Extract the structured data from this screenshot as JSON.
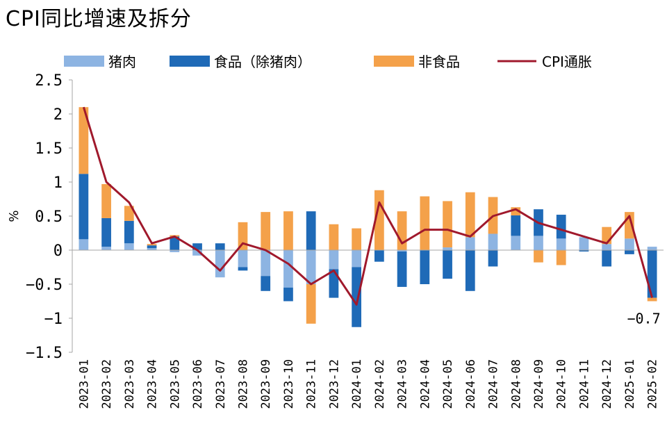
{
  "chart_data": {
    "type": "bar",
    "stacked": true,
    "title": "CPI同比增速及拆分",
    "ylabel": "%",
    "xlabel": "",
    "ylim": [
      -1.5,
      2.5
    ],
    "yticks": [
      2.5,
      2,
      1.5,
      1,
      0.5,
      0,
      -0.5,
      -1,
      -1.5
    ],
    "ytick_labels": [
      "2.5",
      "2",
      "1.5",
      "1",
      "0.5",
      "0",
      "−0.5",
      "−1",
      "−1.5"
    ],
    "grid": false,
    "legend_position": "top",
    "categories": [
      "2023-01",
      "2023-02",
      "2023-03",
      "2023-04",
      "2023-05",
      "2023-06",
      "2023-07",
      "2023-08",
      "2023-09",
      "2023-10",
      "2023-11",
      "2023-12",
      "2024-01",
      "2024-02",
      "2024-03",
      "2024-04",
      "2024-05",
      "2024-06",
      "2024-07",
      "2024-08",
      "2024-09",
      "2024-10",
      "2024-11",
      "2024-12",
      "2025-01",
      "2025-02"
    ],
    "series": [
      {
        "name": "猪肉",
        "kind": "bar",
        "color": "#8db4e2",
        "values": [
          0.16,
          0.05,
          0.1,
          0.03,
          -0.03,
          -0.08,
          -0.4,
          -0.25,
          -0.38,
          -0.55,
          -0.5,
          -0.28,
          -0.25,
          0.0,
          -0.02,
          0.0,
          0.04,
          0.19,
          0.24,
          0.21,
          0.21,
          0.17,
          0.19,
          0.09,
          0.17,
          0.05
        ]
      },
      {
        "name": "食品（除猪肉）",
        "kind": "bar",
        "color": "#1f6ab7",
        "values": [
          0.96,
          0.42,
          0.33,
          0.04,
          0.2,
          0.1,
          0.1,
          -0.05,
          -0.22,
          -0.2,
          0.57,
          -0.42,
          -0.88,
          -0.17,
          -0.52,
          -0.5,
          -0.42,
          -0.6,
          -0.24,
          0.3,
          0.39,
          0.35,
          -0.02,
          -0.24,
          -0.06,
          -0.7
        ]
      },
      {
        "name": "非食品",
        "kind": "bar",
        "color": "#f4a14a",
        "values": [
          0.98,
          0.5,
          0.22,
          0.02,
          0.02,
          0.0,
          0.0,
          0.41,
          0.56,
          0.57,
          -0.58,
          0.38,
          0.32,
          0.88,
          0.57,
          0.79,
          0.68,
          0.66,
          0.54,
          0.12,
          -0.18,
          -0.22,
          0.0,
          0.25,
          0.39,
          -0.05
        ]
      },
      {
        "name": "CPI通胀",
        "kind": "line",
        "color": "#a0192c",
        "values": [
          2.1,
          1.0,
          0.7,
          0.1,
          0.2,
          0.0,
          -0.3,
          0.1,
          0.0,
          -0.2,
          -0.5,
          -0.3,
          -0.8,
          0.7,
          0.1,
          0.3,
          0.3,
          0.2,
          0.5,
          0.6,
          0.4,
          0.3,
          0.2,
          0.1,
          0.5,
          -0.7
        ]
      }
    ],
    "annotations": [
      {
        "text": "−0.7",
        "category": "2025-02",
        "value": -0.7
      }
    ]
  }
}
